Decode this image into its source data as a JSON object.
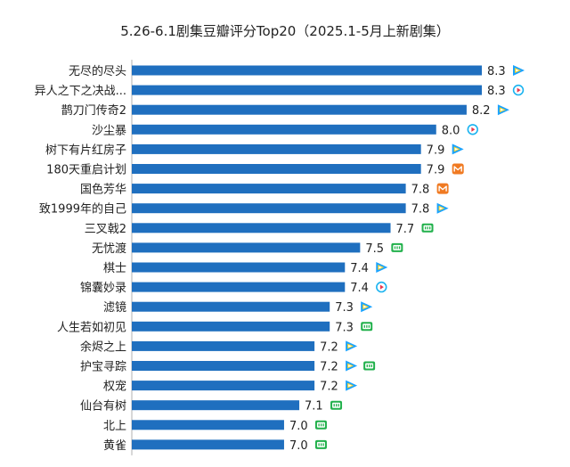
{
  "colors": {
    "bar": "#1f6fbf",
    "axis": "#b0b0b0",
    "text": "#222222",
    "platform_tencent": "#1aa3ff",
    "platform_iqiyi": "#22b14c",
    "platform_youku": "#1ab3f0",
    "platform_mgtv": "#f07a22"
  },
  "chart_data": {
    "type": "bar",
    "orientation": "horizontal",
    "title": "5.26-6.1剧集豆瓣评分Top20（2025.1-5月上新剧集）",
    "xlabel": "",
    "ylabel": "",
    "grid": false,
    "categories": [
      "无尽的尽头",
      "异人之下之决战...",
      "鹊刀门传奇2",
      "沙尘暴",
      "树下有片红房子",
      "180天重启计划",
      "国色芳华",
      "致1999年的自己",
      "三叉戟2",
      "无忧渡",
      "棋士",
      "锦囊妙录",
      "滤镜",
      "人生若如初见",
      "余烬之上",
      "护宝寻踪",
      "权宠",
      "仙台有树",
      "北上",
      "黄雀"
    ],
    "values": [
      8.3,
      8.3,
      8.2,
      8.0,
      7.9,
      7.9,
      7.8,
      7.8,
      7.7,
      7.5,
      7.4,
      7.4,
      7.3,
      7.3,
      7.2,
      7.2,
      7.2,
      7.1,
      7.0,
      7.0
    ],
    "value_labels": [
      "8.3",
      "8.3",
      "8.2",
      "8.0",
      "7.9",
      "7.9",
      "7.8",
      "7.8",
      "7.7",
      "7.5",
      "7.4",
      "7.4",
      "7.3",
      "7.3",
      "7.2",
      "7.2",
      "7.2",
      "7.1",
      "7.0",
      "7.0"
    ],
    "platform_icons": [
      [
        "tencent-video-icon"
      ],
      [
        "youku-icon"
      ],
      [
        "tencent-video-icon"
      ],
      [
        "youku-icon"
      ],
      [
        "tencent-video-icon"
      ],
      [
        "mgtv-icon"
      ],
      [
        "mgtv-icon"
      ],
      [
        "tencent-video-icon"
      ],
      [
        "iqiyi-icon"
      ],
      [
        "iqiyi-icon"
      ],
      [
        "tencent-video-icon"
      ],
      [
        "youku-icon"
      ],
      [
        "tencent-video-icon"
      ],
      [
        "iqiyi-icon"
      ],
      [
        "tencent-video-icon"
      ],
      [
        "tencent-video-icon",
        "iqiyi-icon"
      ],
      [
        "tencent-video-icon"
      ],
      [
        "iqiyi-icon"
      ],
      [
        "iqiyi-icon"
      ],
      [
        "iqiyi-icon"
      ]
    ]
  }
}
